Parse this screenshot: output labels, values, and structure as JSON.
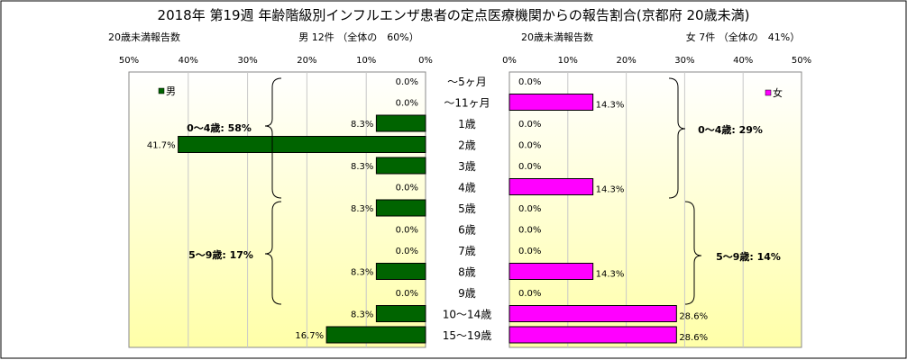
{
  "title": "2018年 第19週 年齢階級別インフルエンザ患者の定点医療機関からの報告割合(京都府 20歳未満)",
  "categories": [
    "〜5ヶ月",
    "〜11ヶ月",
    "1歳",
    "2歳",
    "3歳",
    "4歳",
    "5歳",
    "6歳",
    "7歳",
    "8歳",
    "9歳",
    "10〜14歳",
    "15〜19歳"
  ],
  "colors": {
    "male_bar": "#006400",
    "female_bar": "#ff00ff",
    "bg_top": "#ffffff",
    "bg_bottom": "#ffffa8"
  },
  "chart_data": [
    {
      "type": "bar",
      "orientation": "horizontal",
      "direction": "right-to-left",
      "header_left": "20歳未満報告数",
      "header_right": "男 12件 （全体の　60%）",
      "legend": "男",
      "xlim": [
        0,
        50
      ],
      "xticks": [
        "50%",
        "40%",
        "30%",
        "20%",
        "10%",
        "0%"
      ],
      "grid": true,
      "series": [
        {
          "name": "男",
          "values": [
            0.0,
            0.0,
            8.3,
            41.7,
            8.3,
            0.0,
            8.3,
            0.0,
            0.0,
            8.3,
            0.0,
            8.3,
            16.7
          ]
        }
      ],
      "data_labels": [
        "0.0%",
        "0.0%",
        "8.3%",
        "41.7%",
        "8.3%",
        "0.0%",
        "8.3%",
        "0.0%",
        "0.0%",
        "8.3%",
        "0.0%",
        "8.3%",
        "16.7%"
      ],
      "annotations": [
        "0〜4歳: 58%",
        "5〜9歳: 17%"
      ]
    },
    {
      "type": "bar",
      "orientation": "horizontal",
      "direction": "left-to-right",
      "header_left": "20歳未満報告数",
      "header_right": "女 7件 （全体の　41%）",
      "legend": "女",
      "xlim": [
        0,
        50
      ],
      "xticks": [
        "0%",
        "10%",
        "20%",
        "30%",
        "40%",
        "50%"
      ],
      "grid": true,
      "series": [
        {
          "name": "女",
          "values": [
            0.0,
            14.3,
            0.0,
            0.0,
            0.0,
            14.3,
            0.0,
            0.0,
            0.0,
            14.3,
            0.0,
            28.6,
            28.6
          ]
        }
      ],
      "data_labels": [
        "0.0%",
        "14.3%",
        "0.0%",
        "0.0%",
        "0.0%",
        "14.3%",
        "0.0%",
        "0.0%",
        "0.0%",
        "14.3%",
        "0.0%",
        "28.6%",
        "28.6%"
      ],
      "annotations": [
        "0〜4歳: 29%",
        "5〜9歳: 14%"
      ]
    }
  ]
}
